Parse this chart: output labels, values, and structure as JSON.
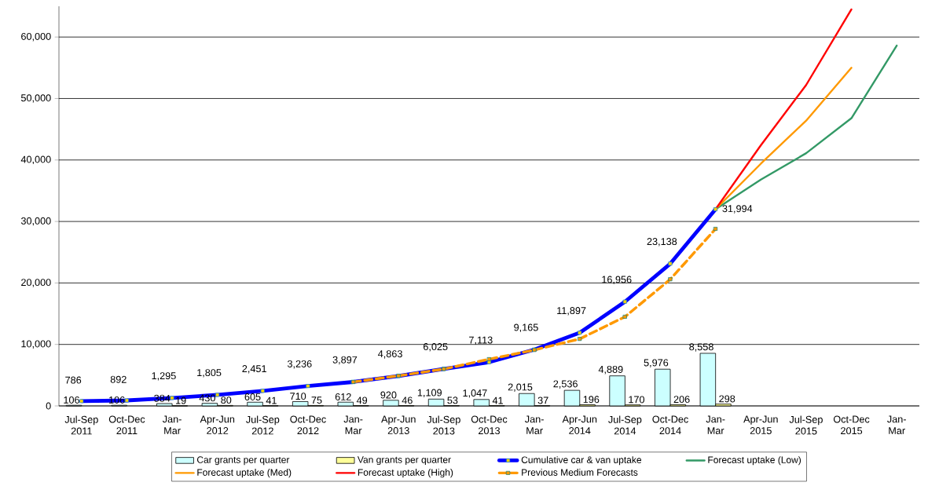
{
  "chart_data": {
    "type": "bar",
    "categories": [
      "Jul-Sep 2011",
      "Oct-Dec 2011",
      "Jan-Mar",
      "Apr-Jun 2012",
      "Jul-Sep 2012",
      "Oct-Dec 2012",
      "Jan-Mar",
      "Apr-Jun 2013",
      "Jul-Sep 2013",
      "Oct-Dec 2013",
      "Jan-Mar",
      "Apr-Jun 2014",
      "Jul-Sep 2014",
      "Oct-Dec 2014",
      "Jan-Mar",
      "Apr-Jun 2015",
      "Jul-Sep 2015",
      "Oct-Dec 2015",
      "Jan-Mar"
    ],
    "ylim": [
      0,
      65000
    ],
    "yticks": [
      0,
      {
        "value": 10000,
        "label": "10,000"
      },
      {
        "value": 20000,
        "label": "20,000"
      },
      {
        "value": 30000,
        "label": "30,000"
      },
      {
        "value": 40000,
        "label": "40,000"
      },
      {
        "value": 50000,
        "label": "50,000"
      },
      {
        "value": 60000,
        "label": "60,000"
      }
    ],
    "grid": "y",
    "legend": "bottom",
    "series": [
      {
        "name": "Car grants per quarter",
        "color": "#ccffff",
        "values": [
          106,
          106,
          384,
          430,
          605,
          710,
          612,
          920,
          1109,
          1047,
          2015,
          2536,
          4889,
          5976,
          8558,
          null,
          null,
          null,
          null
        ],
        "value_labels": [
          "106",
          "106",
          "384",
          "430",
          "605",
          "710",
          "612",
          "920",
          "1,109",
          "1,047",
          "2,015",
          "2,536",
          "4,889",
          "5,976",
          "8,558",
          null,
          null,
          null,
          null
        ]
      },
      {
        "name": "Van grants per quarter",
        "color": "#ffff99",
        "values": [
          null,
          null,
          19,
          80,
          41,
          75,
          49,
          46,
          53,
          41,
          37,
          196,
          170,
          206,
          298,
          null,
          null,
          null,
          null
        ],
        "value_labels": [
          null,
          null,
          "19",
          "80",
          "41",
          "75",
          "49",
          "46",
          "53",
          "41",
          "37",
          "196",
          "170",
          "206",
          "298",
          null,
          null,
          null,
          null
        ]
      },
      {
        "name": "Cumulative car & van uptake",
        "type": "line",
        "color": "#0000ff",
        "marker": "square",
        "values": [
          786,
          892,
          1295,
          1805,
          2451,
          3236,
          3897,
          4863,
          6025,
          7113,
          9165,
          11897,
          16956,
          23138,
          31994,
          null,
          null,
          null,
          null
        ],
        "value_labels": [
          "786",
          "892",
          "1,295",
          "1,805",
          "2,451",
          "3,236",
          "3,897",
          "4,863",
          "6,025",
          "7,113",
          "9,165",
          "11,897",
          "16,956",
          "23,138",
          "31,994",
          null,
          null,
          null,
          null
        ]
      },
      {
        "name": "Forecast uptake (Low)",
        "type": "line",
        "color": "#339966",
        "values": [
          null,
          null,
          null,
          null,
          null,
          null,
          null,
          null,
          null,
          null,
          null,
          null,
          null,
          null,
          32000,
          36800,
          41100,
          46800,
          58600
        ]
      },
      {
        "name": "Forecast uptake (Med)",
        "type": "line",
        "color": "#ff9900",
        "values": [
          null,
          null,
          null,
          null,
          null,
          null,
          null,
          null,
          null,
          null,
          null,
          null,
          null,
          null,
          32000,
          39400,
          46400,
          55000,
          null
        ]
      },
      {
        "name": "Forecast uptake (High)",
        "type": "line",
        "color": "#ff0000",
        "values": [
          null,
          null,
          null,
          null,
          null,
          null,
          null,
          null,
          null,
          null,
          null,
          null,
          null,
          null,
          32000,
          42400,
          52200,
          64500,
          null
        ]
      },
      {
        "name": "Previous Medium Forecasts",
        "type": "line",
        "color": "#ff9900",
        "line_style": "dashed",
        "marker": "square",
        "values": [
          null,
          null,
          null,
          null,
          null,
          null,
          3900,
          4900,
          6000,
          7600,
          9100,
          10900,
          14500,
          20600,
          28800,
          null,
          null,
          null,
          null
        ]
      }
    ]
  }
}
